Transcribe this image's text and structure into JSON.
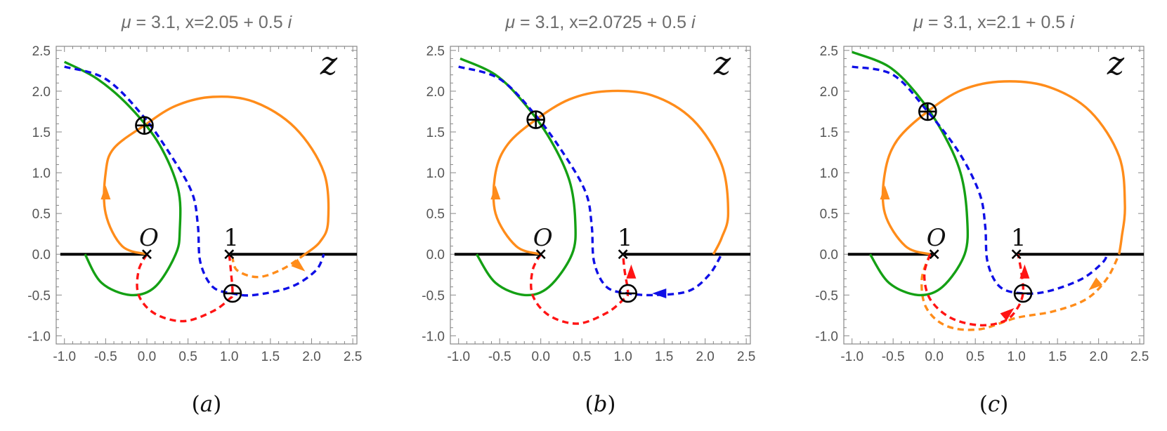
{
  "colors": {
    "orange": "#ff8c1a",
    "green": "#14a014",
    "blue": "#0f0fe6",
    "red": "#ff1414",
    "axis": "#000000",
    "frame": "#888888",
    "tick_text": "#555555"
  },
  "chart_data": [
    {
      "type": "line",
      "title": "μ = 3.1, x=2.05 + 0.5 i",
      "title_parts": {
        "mu_symbol": "μ",
        "mu_rest": " = 3.1, x=2.05 + 0.5 ",
        "imag_unit": "i"
      },
      "panel_label": "(a)",
      "panel_letter": "a",
      "plane_label": "z",
      "xlim": [
        -1.1,
        2.55
      ],
      "ylim": [
        -1.1,
        2.55
      ],
      "xticks": [
        "-1.0",
        "-0.5",
        "0.0",
        "0.5",
        "1.0",
        "1.5",
        "2.0",
        "2.5"
      ],
      "yticks": [
        "2.5",
        "2.0",
        "1.5",
        "1.0",
        "0.5",
        "0.0",
        "-0.5",
        "-1.0"
      ],
      "branch_cuts": [
        {
          "x": [
            -1.05,
            -0.02
          ],
          "y": [
            0,
            0
          ]
        },
        {
          "x": [
            1.02,
            2.55
          ],
          "y": [
            0,
            0
          ]
        }
      ],
      "points": [
        {
          "name": "O",
          "x": 0,
          "y": 0
        },
        {
          "name": "1",
          "x": 1,
          "y": 0
        }
      ],
      "saddles": [
        {
          "sign": "plus",
          "x": -0.03,
          "y": 1.58
        },
        {
          "sign": "minus",
          "x": 1.04,
          "y": -0.48
        }
      ],
      "series": [
        {
          "color": "orange",
          "style": "solid",
          "x": [
            0.0,
            -0.3,
            -0.5,
            -0.5,
            -0.4,
            -0.03,
            0.35,
            0.8,
            1.3,
            1.8,
            2.15,
            2.2,
            2.1,
            1.92
          ],
          "y": [
            0.0,
            0.1,
            0.5,
            1.0,
            1.3,
            1.58,
            1.82,
            1.93,
            1.87,
            1.55,
            1.0,
            0.4,
            0.15,
            0.0
          ]
        },
        {
          "color": "orange",
          "style": "dashed",
          "x": [
            1.92,
            1.65,
            1.35,
            1.1,
            1.04
          ],
          "y": [
            0.0,
            -0.18,
            -0.28,
            -0.2,
            -0.05
          ]
        },
        {
          "color": "green",
          "style": "solid",
          "x": [
            -1.0,
            -0.6,
            -0.2,
            0.15,
            0.38,
            0.4,
            0.35,
            0.1,
            -0.2,
            -0.55,
            -0.75
          ],
          "y": [
            2.36,
            2.15,
            1.8,
            1.35,
            0.8,
            0.3,
            0.0,
            -0.4,
            -0.5,
            -0.35,
            0.0
          ]
        },
        {
          "color": "blue",
          "style": "dashed",
          "x": [
            -1.0,
            -0.5,
            -0.05,
            0.3,
            0.55,
            0.62,
            0.65,
            0.8,
            1.04,
            1.3,
            1.75,
            2.05,
            2.15
          ],
          "y": [
            2.3,
            2.15,
            1.7,
            1.2,
            0.75,
            0.35,
            -0.1,
            -0.4,
            -0.48,
            -0.5,
            -0.4,
            -0.2,
            0.0
          ]
        },
        {
          "color": "red",
          "style": "dashed",
          "x": [
            0.0,
            -0.1,
            -0.1,
            0.1,
            0.45,
            0.8,
            1.0,
            1.04,
            1.02,
            1.0
          ],
          "y": [
            0.0,
            -0.2,
            -0.5,
            -0.73,
            -0.82,
            -0.7,
            -0.55,
            -0.48,
            -0.2,
            0.0
          ]
        }
      ],
      "arrows": [
        {
          "color": "orange",
          "x": -0.5,
          "y": 0.75,
          "direction": "up"
        },
        {
          "color": "orange",
          "x": 1.85,
          "y": -0.15,
          "direction": "down-right"
        }
      ]
    },
    {
      "type": "line",
      "title": "μ = 3.1, x=2.0725 + 0.5 i",
      "title_parts": {
        "mu_symbol": "μ",
        "mu_rest": " = 3.1, x=2.0725 + 0.5 ",
        "imag_unit": "i"
      },
      "panel_label": "(b)",
      "panel_letter": "b",
      "plane_label": "z",
      "xlim": [
        -1.1,
        2.55
      ],
      "ylim": [
        -1.1,
        2.55
      ],
      "xticks": [
        "-1.0",
        "-0.5",
        "0.0",
        "0.5",
        "1.0",
        "1.5",
        "2.0",
        "2.5"
      ],
      "yticks": [
        "2.5",
        "2.0",
        "1.5",
        "1.0",
        "0.5",
        "0.0",
        "-0.5",
        "-1.0"
      ],
      "branch_cuts": [
        {
          "x": [
            -1.05,
            -0.02
          ],
          "y": [
            0,
            0
          ]
        },
        {
          "x": [
            1.02,
            2.55
          ],
          "y": [
            0,
            0
          ]
        }
      ],
      "points": [
        {
          "name": "O",
          "x": 0,
          "y": 0
        },
        {
          "name": "1",
          "x": 1,
          "y": 0
        }
      ],
      "saddles": [
        {
          "sign": "plus",
          "x": -0.06,
          "y": 1.65
        },
        {
          "sign": "minus",
          "x": 1.06,
          "y": -0.48
        }
      ],
      "series": [
        {
          "color": "orange",
          "style": "solid",
          "x": [
            0.0,
            -0.3,
            -0.55,
            -0.55,
            -0.4,
            -0.06,
            0.35,
            0.8,
            1.35,
            1.85,
            2.2,
            2.28,
            2.2,
            2.1
          ],
          "y": [
            0.0,
            0.1,
            0.5,
            1.0,
            1.35,
            1.65,
            1.9,
            2.0,
            1.95,
            1.65,
            1.1,
            0.5,
            0.2,
            0.0
          ]
        },
        {
          "color": "green",
          "style": "solid",
          "x": [
            -0.98,
            -0.55,
            -0.2,
            0.12,
            0.35,
            0.42,
            0.38,
            0.1,
            -0.2,
            -0.55,
            -0.78
          ],
          "y": [
            2.4,
            2.2,
            1.85,
            1.4,
            0.9,
            0.4,
            0.0,
            -0.4,
            -0.5,
            -0.35,
            0.0
          ]
        },
        {
          "color": "blue",
          "style": "dashed",
          "x": [
            -1.0,
            -0.5,
            -0.06,
            0.3,
            0.55,
            0.62,
            0.65,
            0.8,
            1.06,
            1.4,
            1.8,
            2.05,
            2.2
          ],
          "y": [
            2.3,
            2.15,
            1.7,
            1.2,
            0.75,
            0.35,
            -0.1,
            -0.4,
            -0.48,
            -0.5,
            -0.45,
            -0.25,
            0.0
          ]
        },
        {
          "color": "red",
          "style": "dashed",
          "x": [
            0.0,
            -0.1,
            -0.1,
            0.1,
            0.45,
            0.8,
            1.0,
            1.06,
            1.02,
            1.0
          ],
          "y": [
            0.0,
            -0.2,
            -0.5,
            -0.75,
            -0.85,
            -0.72,
            -0.56,
            -0.48,
            -0.2,
            0.0
          ]
        }
      ],
      "arrows": [
        {
          "color": "orange",
          "x": -0.55,
          "y": 0.75,
          "direction": "up"
        },
        {
          "color": "red",
          "x": 1.1,
          "y": -0.22,
          "direction": "up"
        },
        {
          "color": "blue",
          "x": 1.45,
          "y": -0.48,
          "direction": "left"
        }
      ]
    },
    {
      "type": "line",
      "title": "μ = 3.1, x=2.1 + 0.5 i",
      "title_parts": {
        "mu_symbol": "μ",
        "mu_rest": " = 3.1, x=2.1 + 0.5 ",
        "imag_unit": "i"
      },
      "panel_label": "(c)",
      "panel_letter": "c",
      "plane_label": "z",
      "xlim": [
        -1.1,
        2.55
      ],
      "ylim": [
        -1.1,
        2.55
      ],
      "xticks": [
        "-1.0",
        "-0.5",
        "0.0",
        "0.5",
        "1.0",
        "1.5",
        "2.0",
        "2.5"
      ],
      "yticks": [
        "2.5",
        "2.0",
        "1.5",
        "1.0",
        "0.5",
        "0.0",
        "-0.5",
        "-1.0"
      ],
      "branch_cuts": [
        {
          "x": [
            -1.05,
            -0.02
          ],
          "y": [
            0,
            0
          ]
        },
        {
          "x": [
            1.02,
            2.55
          ],
          "y": [
            0,
            0
          ]
        }
      ],
      "points": [
        {
          "name": "O",
          "x": 0,
          "y": 0
        },
        {
          "name": "1",
          "x": 1,
          "y": 0
        }
      ],
      "saddles": [
        {
          "sign": "plus",
          "x": -0.08,
          "y": 1.75
        },
        {
          "sign": "minus",
          "x": 1.08,
          "y": -0.48
        }
      ],
      "series": [
        {
          "color": "orange",
          "style": "solid",
          "x": [
            -0.05,
            -0.35,
            -0.6,
            -0.6,
            -0.45,
            -0.08,
            0.35,
            0.85,
            1.4,
            1.9,
            2.25,
            2.32,
            2.28,
            2.25
          ],
          "y": [
            0.0,
            0.1,
            0.5,
            1.0,
            1.4,
            1.75,
            2.02,
            2.12,
            2.05,
            1.75,
            1.2,
            0.6,
            0.2,
            0.0
          ]
        },
        {
          "color": "orange",
          "style": "dashed",
          "x": [
            -0.05,
            -0.15,
            -0.1,
            0.15,
            0.55,
            1.0,
            1.45,
            1.85,
            2.1,
            2.25
          ],
          "y": [
            0.0,
            -0.3,
            -0.65,
            -0.88,
            -0.92,
            -0.78,
            -0.7,
            -0.55,
            -0.3,
            0.0
          ]
        },
        {
          "color": "green",
          "style": "solid",
          "x": [
            -1.0,
            -0.55,
            -0.2,
            0.1,
            0.32,
            0.4,
            0.37,
            0.1,
            -0.2,
            -0.55,
            -0.78
          ],
          "y": [
            2.48,
            2.3,
            1.95,
            1.5,
            1.0,
            0.45,
            0.0,
            -0.4,
            -0.5,
            -0.35,
            0.0
          ]
        },
        {
          "color": "blue",
          "style": "dashed",
          "x": [
            -1.0,
            -0.5,
            -0.08,
            0.3,
            0.55,
            0.62,
            0.65,
            0.8,
            1.08,
            1.4,
            1.8,
            2.05,
            2.1
          ],
          "y": [
            2.3,
            2.2,
            1.75,
            1.25,
            0.75,
            0.35,
            -0.1,
            -0.4,
            -0.48,
            -0.45,
            -0.3,
            -0.1,
            0.0
          ]
        },
        {
          "color": "red",
          "style": "dashed",
          "x": [
            -0.05,
            -0.12,
            -0.05,
            0.2,
            0.55,
            0.85,
            1.0,
            1.08,
            1.06,
            1.02
          ],
          "y": [
            0.0,
            -0.25,
            -0.55,
            -0.78,
            -0.87,
            -0.82,
            -0.68,
            -0.48,
            -0.22,
            0.0
          ]
        }
      ],
      "arrows": [
        {
          "color": "orange",
          "x": -0.6,
          "y": 0.75,
          "direction": "up"
        },
        {
          "color": "red",
          "x": 1.1,
          "y": -0.22,
          "direction": "up"
        },
        {
          "color": "red",
          "x": 0.9,
          "y": -0.72,
          "direction": "up-right"
        },
        {
          "color": "orange",
          "x": 1.95,
          "y": -0.38,
          "direction": "down-left"
        }
      ]
    }
  ]
}
